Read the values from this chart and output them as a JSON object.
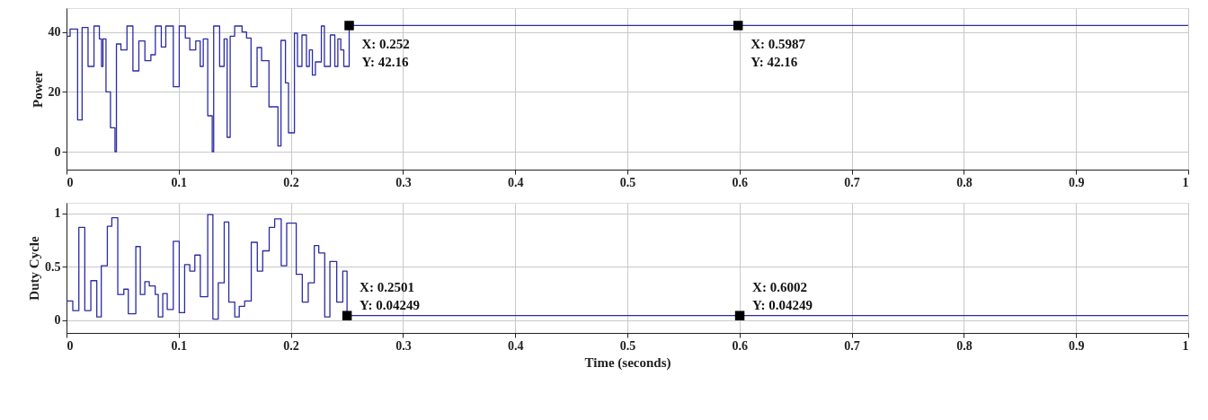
{
  "chart_data": [
    {
      "type": "step",
      "ylabel": "Power",
      "xlim": [
        0,
        1
      ],
      "xticks": [
        0,
        0.1,
        0.2,
        0.3,
        0.4,
        0.5,
        0.6,
        0.7,
        0.8,
        0.9,
        1
      ],
      "ylim": [
        -6,
        48
      ],
      "yticks": [
        0,
        20,
        40
      ],
      "grid": true,
      "x": [
        0,
        0.0032,
        0.0099,
        0.0139,
        0.0192,
        0.0245,
        0.0293,
        0.0312,
        0.0325,
        0.0352,
        0.0392,
        0.0432,
        0.0445,
        0.0485,
        0.0539,
        0.0592,
        0.0645,
        0.0699,
        0.0752,
        0.0792,
        0.0845,
        0.0885,
        0.0952,
        0.1005,
        0.1059,
        0.1099,
        0.1152,
        0.1192,
        0.1219,
        0.1259,
        0.1299,
        0.1312,
        0.1365,
        0.1405,
        0.1432,
        0.1459,
        0.1499,
        0.1565,
        0.1605,
        0.1645,
        0.1699,
        0.1739,
        0.1805,
        0.1885,
        0.1912,
        0.1952,
        0.1979,
        0.2032,
        0.2059,
        0.2099,
        0.2139,
        0.2165,
        0.2192,
        0.2219,
        0.2272,
        0.2299,
        0.2352,
        0.2392,
        0.2419,
        0.2445,
        0.2472,
        0.252,
        1
      ],
      "series": [
        {
          "color": "#2b2ba6",
          "values": [
            38.6,
            41,
            10.6,
            41.5,
            28.5,
            42,
            37.7,
            28.5,
            37.7,
            20,
            8,
            0,
            36,
            34,
            42,
            27,
            37,
            30.4,
            32.4,
            42,
            35,
            42,
            21.7,
            42,
            38,
            34,
            37,
            28.5,
            37.7,
            12,
            0,
            42,
            28.5,
            37.7,
            4.8,
            38.6,
            42,
            40,
            38,
            21.7,
            34.8,
            30.4,
            15,
            1.9,
            37.2,
            23,
            6.3,
            39.6,
            28.5,
            39,
            28.5,
            34,
            25.6,
            30,
            42,
            28.5,
            39,
            28.5,
            37.7,
            34,
            28.5,
            42.16,
            42.16
          ]
        }
      ],
      "annotations": [
        {
          "text": "X: 0.252\nY: 42.16",
          "x": 0.252,
          "y": 42.16
        },
        {
          "text": "X: 0.5987\nY: 42.16",
          "x": 0.5987,
          "y": 42.16
        }
      ]
    },
    {
      "type": "step",
      "ylabel": "Duty Cycle",
      "xlabel": "Time (seconds)",
      "xlim": [
        0,
        1
      ],
      "xticks": [
        0,
        0.1,
        0.2,
        0.3,
        0.4,
        0.5,
        0.6,
        0.7,
        0.8,
        0.9,
        1
      ],
      "ylim": [
        -0.12,
        1.1
      ],
      "yticks": [
        0,
        0.5,
        1
      ],
      "grid": true,
      "x": [
        0,
        0.0056,
        0.011,
        0.0163,
        0.0217,
        0.027,
        0.031,
        0.0364,
        0.0404,
        0.0457,
        0.0511,
        0.0551,
        0.0618,
        0.0658,
        0.0698,
        0.0738,
        0.0791,
        0.0818,
        0.0858,
        0.0898,
        0.0952,
        0.1005,
        0.1053,
        0.1099,
        0.1144,
        0.1193,
        0.1259,
        0.1305,
        0.1353,
        0.1406,
        0.1447,
        0.15,
        0.154,
        0.1588,
        0.1647,
        0.1701,
        0.1749,
        0.1807,
        0.1856,
        0.1914,
        0.1963,
        0.2048,
        0.2102,
        0.2155,
        0.2209,
        0.2249,
        0.2302,
        0.2348,
        0.2409,
        0.2463,
        0.2501,
        1
      ],
      "series": [
        {
          "color": "#2b2ba6",
          "values": [
            0.18,
            0.09,
            0.87,
            0.09,
            0.37,
            0.03,
            0.51,
            0.88,
            0.96,
            0.24,
            0.29,
            0.06,
            0.69,
            0.24,
            0.36,
            0.32,
            0.24,
            0.03,
            0.25,
            0.1,
            0.74,
            0.07,
            0.52,
            0.46,
            0.61,
            0.22,
            0.99,
            0.01,
            0.35,
            0.92,
            0.17,
            0.03,
            0.13,
            0.18,
            0.73,
            0.46,
            0.65,
            0.87,
            0.95,
            0.51,
            0.91,
            0.43,
            0.17,
            0.35,
            0.7,
            0.63,
            0.03,
            0.55,
            0.17,
            0.46,
            0.04249,
            0.04249
          ]
        }
      ],
      "annotations": [
        {
          "text": "X: 0.2501\nY: 0.04249",
          "x": 0.2501,
          "y": 0.04249
        },
        {
          "text": "X: 0.6002\nY: 0.04249",
          "x": 0.6002,
          "y": 0.04249
        }
      ]
    }
  ]
}
